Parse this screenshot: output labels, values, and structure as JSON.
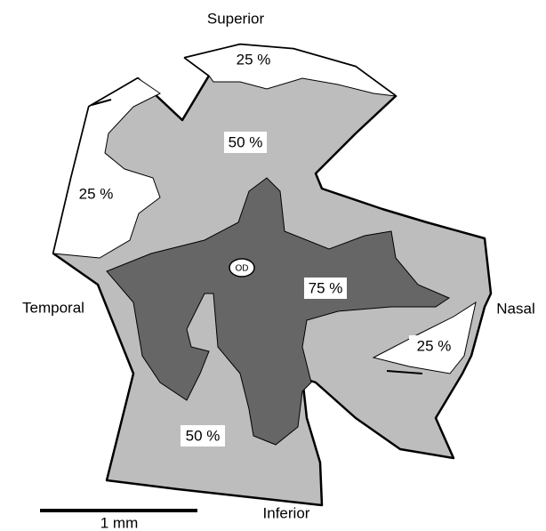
{
  "orientation": {
    "superior": "Superior",
    "inferior": "Inferior",
    "temporal": "Temporal",
    "nasal": "Nasal"
  },
  "regions": {
    "superior_outer": "25 %",
    "superior_mid": "50 %",
    "temporal_outer": "25 %",
    "central": "75 %",
    "nasal_outer": "25 %",
    "inferior_mid": "50 %"
  },
  "optic_disc": "OD",
  "scale_bar": "1 mm"
}
